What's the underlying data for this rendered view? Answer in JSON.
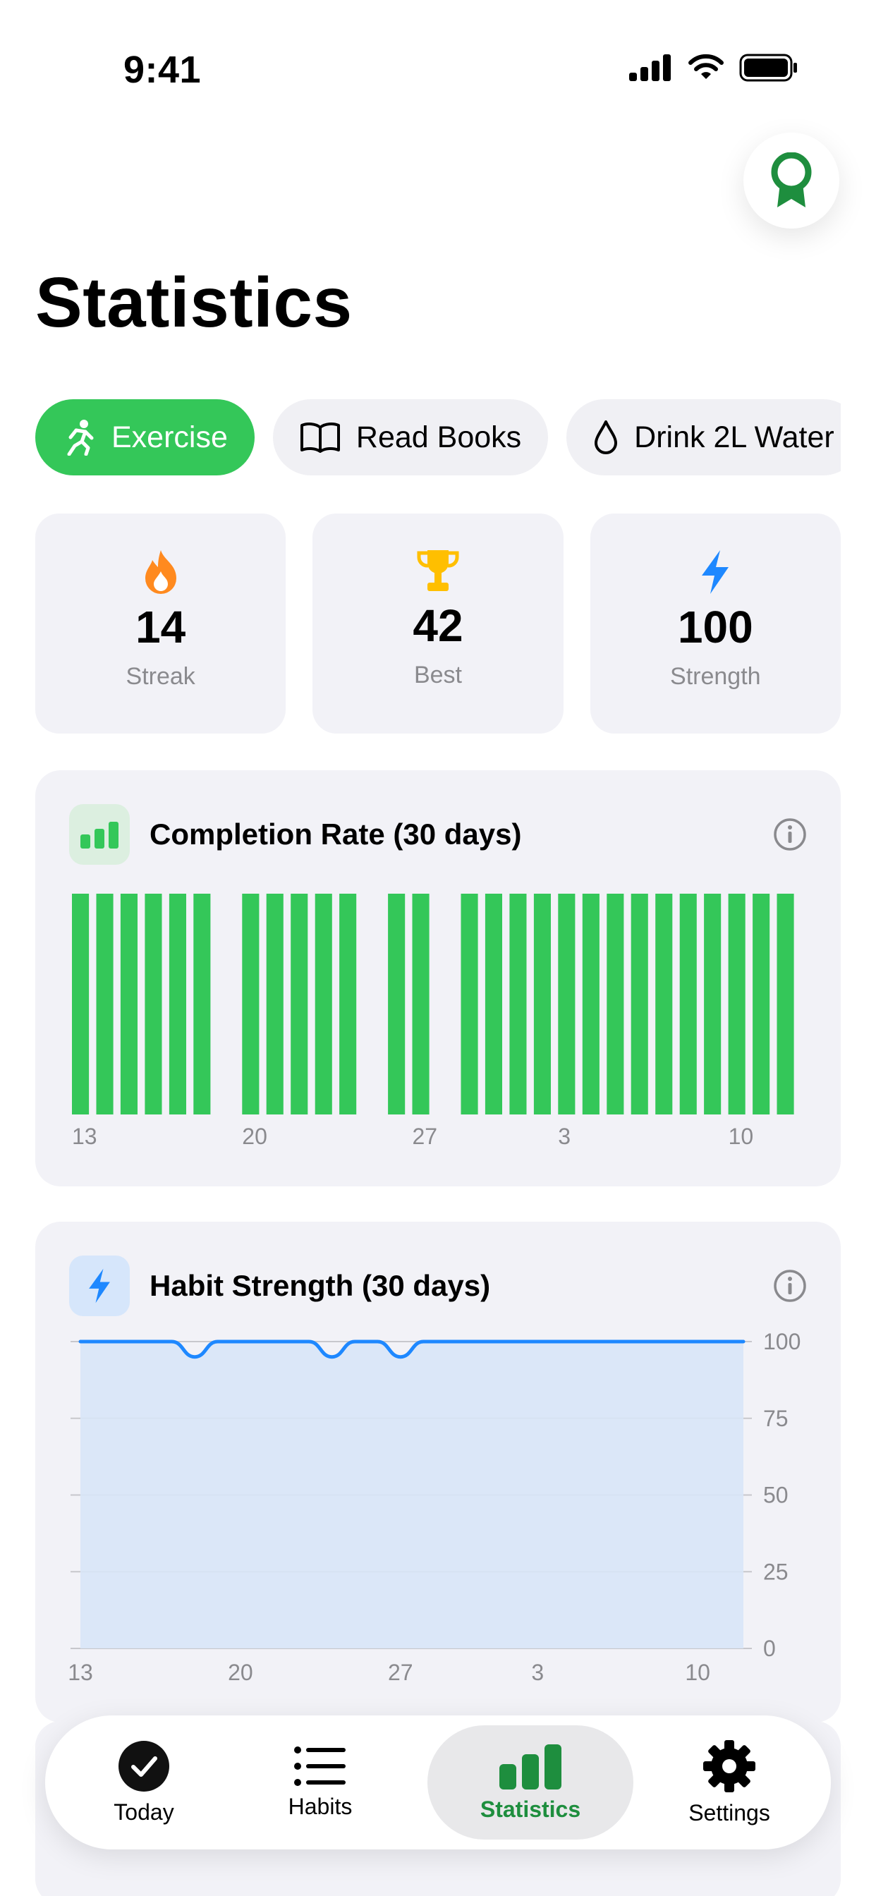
{
  "status_bar": {
    "time": "9:41"
  },
  "header": {
    "title": "Statistics"
  },
  "habits": [
    {
      "label": "Exercise",
      "icon": "running-figure-icon",
      "active": true
    },
    {
      "label": "Read Books",
      "icon": "open-book-icon",
      "active": false
    },
    {
      "label": "Drink 2L Water",
      "icon": "water-drop-icon",
      "active": false
    }
  ],
  "stats": [
    {
      "value": "14",
      "label": "Streak",
      "icon": "flame-icon",
      "color": "#ff8a1f"
    },
    {
      "value": "42",
      "label": "Best",
      "icon": "trophy-icon",
      "color": "#ffbf00"
    },
    {
      "value": "100",
      "label": "Strength",
      "icon": "bolt-icon",
      "color": "#1e88ff"
    }
  ],
  "completion": {
    "title": "Completion Rate (30 days)",
    "icon": "bar-chart-icon"
  },
  "strength": {
    "title": "Habit Strength (30 days)",
    "icon": "bolt-icon"
  },
  "tabs": [
    {
      "label": "Today",
      "icon": "checkmark-circle-icon"
    },
    {
      "label": "Habits",
      "icon": "list-icon"
    },
    {
      "label": "Statistics",
      "icon": "bar-chart-icon"
    },
    {
      "label": "Settings",
      "icon": "gear-icon"
    }
  ],
  "chart_data": [
    {
      "type": "bar",
      "title": "Completion Rate (30 days)",
      "categories": [
        "13",
        "14",
        "15",
        "16",
        "17",
        "18",
        "19",
        "20",
        "21",
        "22",
        "23",
        "24",
        "25",
        "26",
        "27",
        "28",
        "29",
        "30",
        "1",
        "2",
        "3",
        "4",
        "5",
        "6",
        "7",
        "8",
        "9",
        "10",
        "11",
        "12"
      ],
      "tick_labels": [
        "13",
        "20",
        "27",
        "3",
        "10"
      ],
      "values": [
        1,
        1,
        1,
        1,
        1,
        1,
        0,
        1,
        1,
        1,
        1,
        1,
        0,
        1,
        1,
        0,
        1,
        1,
        1,
        1,
        1,
        1,
        1,
        1,
        1,
        1,
        1,
        1,
        1,
        1
      ],
      "ylim": [
        0,
        1
      ],
      "color": "#34c759"
    },
    {
      "type": "area",
      "title": "Habit Strength (30 days)",
      "x": [
        "13",
        "14",
        "15",
        "16",
        "17",
        "18",
        "19",
        "20",
        "21",
        "22",
        "23",
        "24",
        "25",
        "26",
        "27",
        "28",
        "29",
        "30",
        "1",
        "2",
        "3",
        "4",
        "5",
        "6",
        "7",
        "8",
        "9",
        "10",
        "11",
        "12"
      ],
      "tick_labels": [
        "13",
        "20",
        "27",
        "3",
        "10"
      ],
      "values": [
        100,
        100,
        100,
        100,
        100,
        95,
        100,
        100,
        100,
        100,
        100,
        95,
        100,
        100,
        95,
        100,
        100,
        100,
        100,
        100,
        100,
        100,
        100,
        100,
        100,
        100,
        100,
        100,
        100,
        100
      ],
      "ylim": [
        0,
        100
      ],
      "yticks": [
        "100",
        "75",
        "50",
        "25",
        "0"
      ],
      "grid": true,
      "line_color": "#1e88ff",
      "fill_color": "#d8e6f7"
    }
  ]
}
